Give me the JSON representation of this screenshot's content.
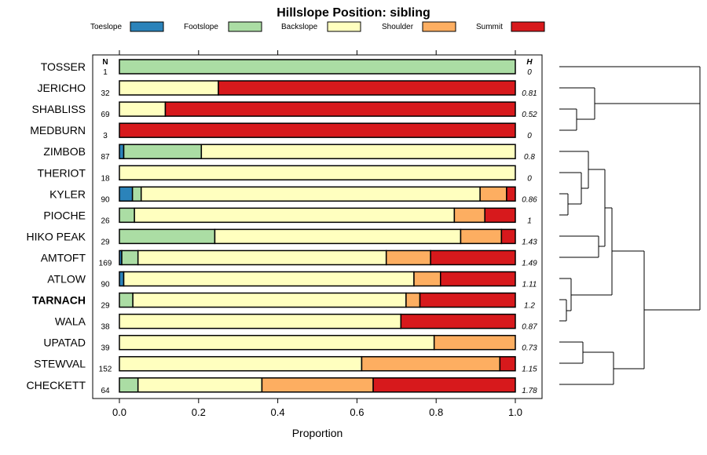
{
  "chart_data": {
    "type": "bar",
    "stacked": true,
    "orientation": "horizontal",
    "title": "Hillslope Position: sibling",
    "xlabel": "Proportion",
    "xlim": [
      0,
      1
    ],
    "xticks": [
      "0.0",
      "0.2",
      "0.4",
      "0.6",
      "0.8",
      "1.0"
    ],
    "n_header": "N",
    "h_header": "H",
    "legend": [
      {
        "name": "Toeslope",
        "color": "#2b83ba"
      },
      {
        "name": "Footslope",
        "color": "#abdda4"
      },
      {
        "name": "Backslope",
        "color": "#ffffbf"
      },
      {
        "name": "Shoulder",
        "color": "#fdae61"
      },
      {
        "name": "Summit",
        "color": "#d7191c"
      }
    ],
    "rows": [
      {
        "label": "TOSSER",
        "n": "1",
        "h": "0",
        "bold": false,
        "values": [
          0,
          1.0,
          0,
          0,
          0
        ]
      },
      {
        "label": "JERICHO",
        "n": "32",
        "h": "0.81",
        "bold": false,
        "values": [
          0,
          0,
          0.25,
          0,
          0.75
        ]
      },
      {
        "label": "SHABLISS",
        "n": "69",
        "h": "0.52",
        "bold": false,
        "values": [
          0,
          0,
          0.116,
          0,
          0.884
        ]
      },
      {
        "label": "MEDBURN",
        "n": "3",
        "h": "0",
        "bold": false,
        "values": [
          0,
          0,
          0,
          0,
          1.0
        ]
      },
      {
        "label": "ZIMBOB",
        "n": "87",
        "h": "0.8",
        "bold": false,
        "values": [
          0.011,
          0.196,
          0.793,
          0,
          0
        ]
      },
      {
        "label": "THERIOT",
        "n": "18",
        "h": "0",
        "bold": false,
        "values": [
          0,
          0,
          1.0,
          0,
          0
        ]
      },
      {
        "label": "KYLER",
        "n": "90",
        "h": "0.86",
        "bold": false,
        "values": [
          0.033,
          0.022,
          0.856,
          0.067,
          0.022
        ]
      },
      {
        "label": "PIOCHE",
        "n": "26",
        "h": "1",
        "bold": false,
        "values": [
          0,
          0.038,
          0.808,
          0.077,
          0.077
        ]
      },
      {
        "label": "HIKO PEAK",
        "n": "29",
        "h": "1.43",
        "bold": false,
        "values": [
          0,
          0.241,
          0.621,
          0.103,
          0.035
        ]
      },
      {
        "label": "AMTOFT",
        "n": "169",
        "h": "1.49",
        "bold": false,
        "values": [
          0.006,
          0.041,
          0.627,
          0.112,
          0.214
        ]
      },
      {
        "label": "ATLOW",
        "n": "90",
        "h": "1.11",
        "bold": false,
        "values": [
          0.011,
          0,
          0.733,
          0.067,
          0.189
        ]
      },
      {
        "label": "TARNACH",
        "n": "29",
        "h": "1.2",
        "bold": true,
        "values": [
          0,
          0.034,
          0.69,
          0.035,
          0.241
        ]
      },
      {
        "label": "WALA",
        "n": "38",
        "h": "0.87",
        "bold": false,
        "values": [
          0,
          0,
          0.711,
          0,
          0.289
        ]
      },
      {
        "label": "UPATAD",
        "n": "39",
        "h": "0.73",
        "bold": false,
        "values": [
          0,
          0,
          0.795,
          0.205,
          0
        ]
      },
      {
        "label": "STEWVAL",
        "n": "152",
        "h": "1.15",
        "bold": false,
        "values": [
          0,
          0,
          0.612,
          0.349,
          0.039
        ]
      },
      {
        "label": "CHECKETT",
        "n": "64",
        "h": "1.78",
        "bold": false,
        "values": [
          0,
          0.047,
          0.313,
          0.281,
          0.359
        ]
      }
    ]
  }
}
